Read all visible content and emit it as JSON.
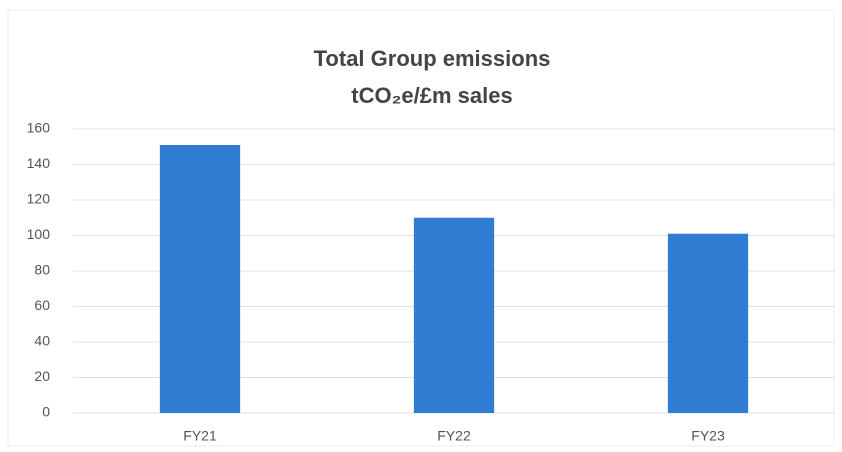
{
  "chart_data": {
    "type": "bar",
    "title": [
      "Total Group emissions",
      "tCO₂e/£m sales"
    ],
    "categories": [
      "FY21",
      "FY22",
      "FY23"
    ],
    "values": [
      151,
      110,
      101
    ],
    "color": "#2f7dd3",
    "ylim": [
      0,
      160
    ],
    "yticks": [
      0,
      20,
      40,
      60,
      80,
      100,
      120,
      140,
      160
    ],
    "grid": true
  }
}
